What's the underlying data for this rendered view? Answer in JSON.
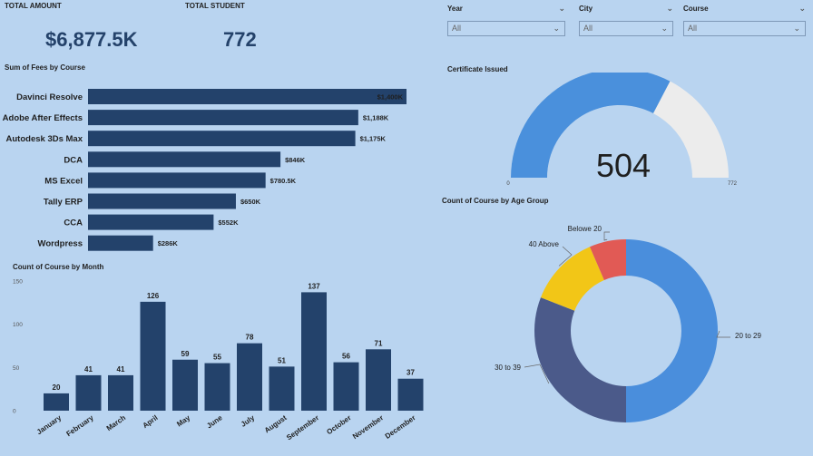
{
  "kpis": {
    "total_amount_label": "TOTAL AMOUNT",
    "total_amount_value": "$6,877.5K",
    "total_student_label": "TOTAL STUDENT",
    "total_student_value": "772"
  },
  "slicers": [
    {
      "label": "Year",
      "value": "All"
    },
    {
      "label": "City",
      "value": "All"
    },
    {
      "label": "Course",
      "value": "All"
    }
  ],
  "colors": {
    "bar": "#23426b",
    "gauge_fill": "#4a90dc",
    "gauge_bg": "#ececec",
    "donut_20_29": "#4a8edc",
    "donut_30_39": "#4b5a8a",
    "donut_40_above": "#f2c617",
    "donut_below_20": "#e15a55"
  },
  "chart_data": [
    {
      "id": "fees_by_course",
      "type": "bar",
      "orientation": "horizontal",
      "title": "Sum of Fees by Course",
      "categories": [
        "Davinci Resolve",
        "Adobe After Effects",
        "Autodesk 3Ds Max",
        "DCA",
        "MS Excel",
        "Tally ERP",
        "CCA",
        "Wordpress"
      ],
      "values": [
        1400,
        1188,
        1175,
        846,
        780.5,
        650,
        552,
        286
      ],
      "labels": [
        "$1,400K",
        "$1,188K",
        "$1,175K",
        "$846K",
        "$780.5K",
        "$650K",
        "$552K",
        "$286K"
      ],
      "unit": "K"
    },
    {
      "id": "count_by_month",
      "type": "bar",
      "title": "Count of Course by Month",
      "categories": [
        "January",
        "February",
        "March",
        "April",
        "May",
        "June",
        "July",
        "August",
        "September",
        "October",
        "November",
        "December"
      ],
      "values": [
        20,
        41,
        41,
        126,
        59,
        55,
        78,
        51,
        137,
        56,
        71,
        37
      ],
      "yticks": [
        0,
        50,
        100,
        150
      ],
      "ylim": [
        0,
        150
      ]
    },
    {
      "id": "certificate_issued",
      "type": "gauge",
      "title": "Certificate Issued",
      "value": 504,
      "min": 0,
      "max": 772,
      "min_label": "0",
      "max_label": "772",
      "value_label": "504"
    },
    {
      "id": "age_group",
      "type": "pie",
      "title": "Count of Course by Age Group",
      "categories": [
        "20 to 29",
        "30 to 39",
        "40 Above",
        "Belowe 20"
      ],
      "values": [
        386,
        239,
        97,
        50
      ]
    }
  ]
}
